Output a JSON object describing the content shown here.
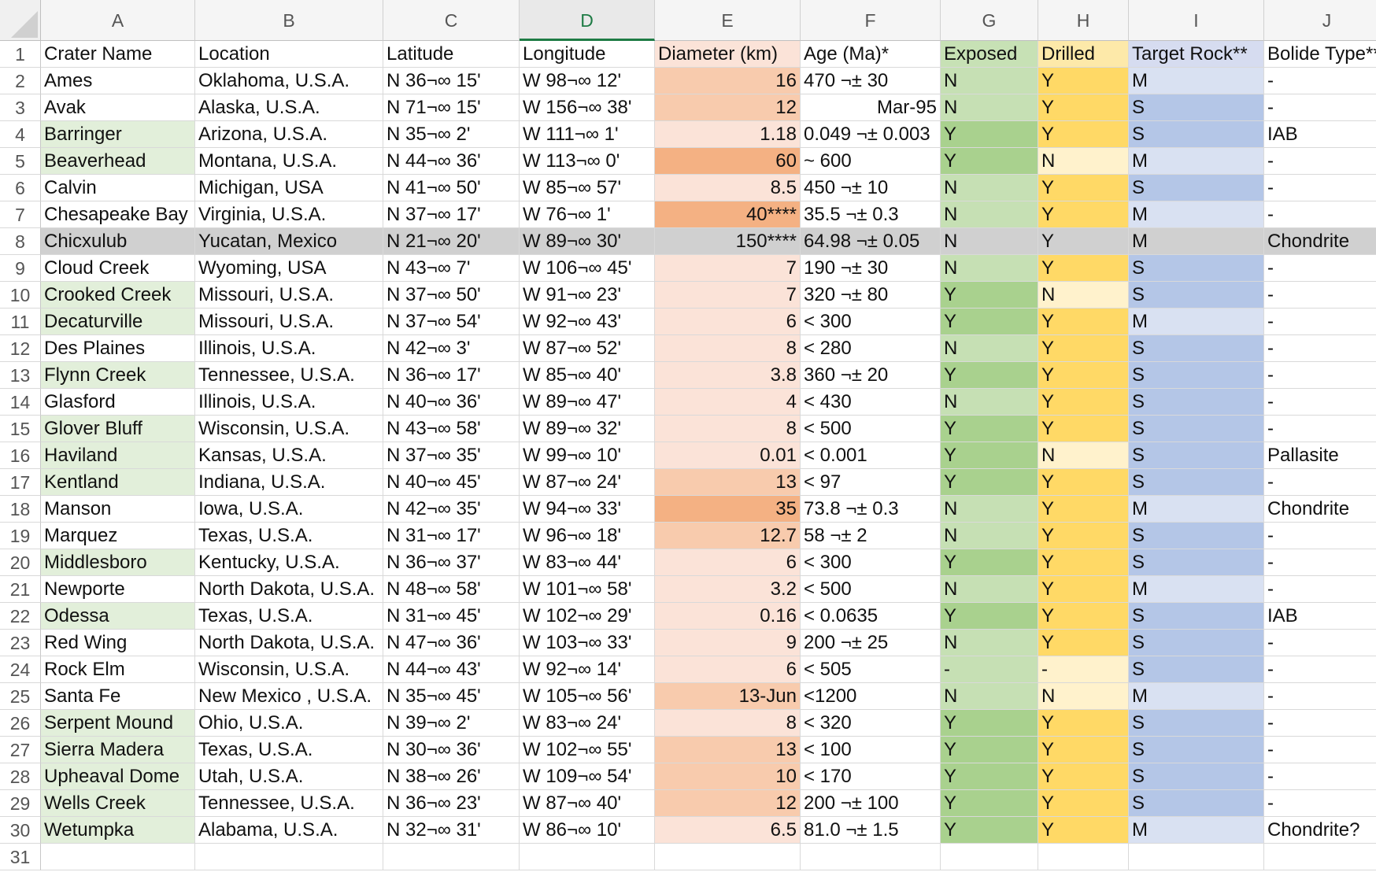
{
  "sheet": {
    "columns": [
      "A",
      "B",
      "C",
      "D",
      "E",
      "F",
      "G",
      "H",
      "I",
      "J"
    ],
    "active_column": "D",
    "headers": [
      "Crater Name",
      "Location",
      "Latitude",
      "Longitude",
      "Diameter (km)",
      "Age (Ma)*",
      "Exposed",
      "Drilled",
      "Target Rock**",
      "Bolide Type***"
    ],
    "rows": [
      [
        "Ames",
        "Oklahoma, U.S.A.",
        "N 36¬∞ 15'",
        "W 98¬∞ 12'",
        "16",
        "470 ¬± 30",
        "N",
        "Y",
        "M",
        "-"
      ],
      [
        "Avak",
        "Alaska, U.S.A.",
        "N 71¬∞ 15'",
        "W 156¬∞ 38'",
        "12",
        "Mar-95",
        "N",
        "Y",
        "S",
        "-"
      ],
      [
        "Barringer",
        "Arizona, U.S.A.",
        "N 35¬∞ 2'",
        "W 111¬∞ 1'",
        "1.18",
        "0.049 ¬± 0.003",
        "Y",
        "Y",
        "S",
        "IAB"
      ],
      [
        "Beaverhead",
        "Montana, U.S.A.",
        "N 44¬∞ 36'",
        "W 113¬∞ 0'",
        "60",
        "~ 600",
        "Y",
        "N",
        "M",
        "-"
      ],
      [
        "Calvin",
        "Michigan, USA",
        "N 41¬∞ 50'",
        "W 85¬∞ 57'",
        "8.5",
        "450 ¬± 10",
        "N",
        "Y",
        "S",
        "-"
      ],
      [
        "Chesapeake Bay",
        "Virginia, U.S.A.",
        "N 37¬∞ 17'",
        "W 76¬∞ 1'",
        "40****",
        "35.5 ¬± 0.3",
        "N",
        "Y",
        "M",
        "-"
      ],
      [
        "Chicxulub",
        "Yucatan, Mexico",
        "N 21¬∞ 20'",
        "W 89¬∞ 30'",
        "150****",
        "64.98 ¬± 0.05",
        "N",
        "Y",
        "M",
        "Chondrite"
      ],
      [
        "Cloud Creek",
        "Wyoming, USA",
        "N 43¬∞ 7'",
        "W 106¬∞ 45'",
        "7",
        "190 ¬± 30",
        "N",
        "Y",
        "S",
        "-"
      ],
      [
        "Crooked Creek",
        "Missouri, U.S.A.",
        "N 37¬∞ 50'",
        "W 91¬∞ 23'",
        "7",
        "320 ¬± 80",
        "Y",
        "N",
        "S",
        "-"
      ],
      [
        "Decaturville",
        "Missouri, U.S.A.",
        "N 37¬∞ 54'",
        "W 92¬∞ 43'",
        "6",
        "< 300",
        "Y",
        "Y",
        "M",
        "-"
      ],
      [
        "Des Plaines",
        "Illinois, U.S.A.",
        "N 42¬∞ 3'",
        "W 87¬∞ 52'",
        "8",
        "< 280",
        "N",
        "Y",
        "S",
        "-"
      ],
      [
        "Flynn Creek",
        "Tennessee, U.S.A.",
        "N 36¬∞ 17'",
        "W 85¬∞ 40'",
        "3.8",
        "360 ¬± 20",
        "Y",
        "Y",
        "S",
        "-"
      ],
      [
        "Glasford",
        "Illinois, U.S.A.",
        "N 40¬∞ 36'",
        "W 89¬∞ 47'",
        "4",
        "< 430",
        "N",
        "Y",
        "S",
        "-"
      ],
      [
        "Glover Bluff",
        "Wisconsin, U.S.A.",
        "N 43¬∞ 58'",
        "W 89¬∞ 32'",
        "8",
        "< 500",
        "Y",
        "Y",
        "S",
        "-"
      ],
      [
        "Haviland",
        "Kansas, U.S.A.",
        "N 37¬∞ 35'",
        "W 99¬∞ 10'",
        "0.01",
        "< 0.001",
        "Y",
        "N",
        "S",
        "Pallasite"
      ],
      [
        "Kentland",
        "Indiana, U.S.A.",
        "N 40¬∞ 45'",
        "W 87¬∞ 24'",
        "13",
        "< 97",
        "Y",
        "Y",
        "S",
        "-"
      ],
      [
        "Manson",
        "Iowa, U.S.A.",
        "N 42¬∞ 35'",
        "W 94¬∞ 33'",
        "35",
        "73.8 ¬± 0.3",
        "N",
        "Y",
        "M",
        "Chondrite"
      ],
      [
        "Marquez",
        "Texas, U.S.A.",
        "N 31¬∞ 17'",
        "W 96¬∞ 18'",
        "12.7",
        "58 ¬± 2",
        "N",
        "Y",
        "S",
        "-"
      ],
      [
        "Middlesboro",
        "Kentucky, U.S.A.",
        "N 36¬∞ 37'",
        "W 83¬∞ 44'",
        "6",
        "< 300",
        "Y",
        "Y",
        "S",
        "-"
      ],
      [
        "Newporte",
        "North Dakota, U.S.A.",
        "N 48¬∞ 58'",
        "W 101¬∞ 58'",
        "3.2",
        "< 500",
        "N",
        "Y",
        "M",
        "-"
      ],
      [
        "Odessa",
        "Texas, U.S.A.",
        "N 31¬∞ 45'",
        "W 102¬∞ 29'",
        "0.16",
        "< 0.0635",
        "Y",
        "Y",
        "S",
        "IAB"
      ],
      [
        "Red Wing",
        "North Dakota, U.S.A.",
        "N 47¬∞ 36'",
        "W 103¬∞ 33'",
        "9",
        "200 ¬± 25",
        "N",
        "Y",
        "S",
        "-"
      ],
      [
        "Rock Elm",
        "Wisconsin, U.S.A.",
        "N 44¬∞ 43'",
        "W 92¬∞ 14'",
        "6",
        "< 505",
        "-",
        "-",
        "S",
        "-"
      ],
      [
        "Santa Fe",
        "New Mexico , U.S.A.",
        "N 35¬∞ 45'",
        "W 105¬∞ 56'",
        "13-Jun",
        "<1200",
        "N",
        "N",
        "M",
        "-"
      ],
      [
        "Serpent Mound",
        "Ohio, U.S.A.",
        "N 39¬∞ 2'",
        "W 83¬∞ 24'",
        "8",
        "< 320",
        "Y",
        "Y",
        "S",
        "-"
      ],
      [
        "Sierra Madera",
        "Texas, U.S.A.",
        "N 30¬∞ 36'",
        "W 102¬∞ 55'",
        "13",
        "< 100",
        "Y",
        "Y",
        "S",
        "-"
      ],
      [
        "Upheaval Dome",
        "Utah, U.S.A.",
        "N 38¬∞ 26'",
        "W 109¬∞ 54'",
        "10",
        "< 170",
        "Y",
        "Y",
        "S",
        "-"
      ],
      [
        "Wells Creek",
        "Tennessee, U.S.A.",
        "N 36¬∞ 23'",
        "W 87¬∞ 40'",
        "12",
        "200 ¬± 100",
        "Y",
        "Y",
        "S",
        "-"
      ],
      [
        "Wetumpka",
        "Alabama, U.S.A.",
        "N 32¬∞ 31'",
        "W 86¬∞ 10'",
        "6.5",
        "81.0 ¬± 1.5",
        "Y",
        "Y",
        "M",
        "Chondrite?"
      ]
    ],
    "highlighted_row": 8,
    "colors": {
      "grid": "#d9d9d9",
      "header_exposed": "#c7e1b5",
      "header_drilled": "#fde9a9",
      "header_target": "#d6dcf0",
      "exposed_Y": "#a9d18e",
      "exposed_N": "#c6e0b4",
      "drilled_Y": "#ffd966",
      "drilled_N": "#fff2cc",
      "target_S": "#b4c6e7",
      "target_M": "#d9e1f2",
      "name_Y": "#e2efda",
      "diam_low": "#fbe3d8",
      "diam_mid": "#f8cbad",
      "diam_high": "#f4b183",
      "highlight_row": "#d0d0d0",
      "active_column": "#1e7b45"
    }
  }
}
